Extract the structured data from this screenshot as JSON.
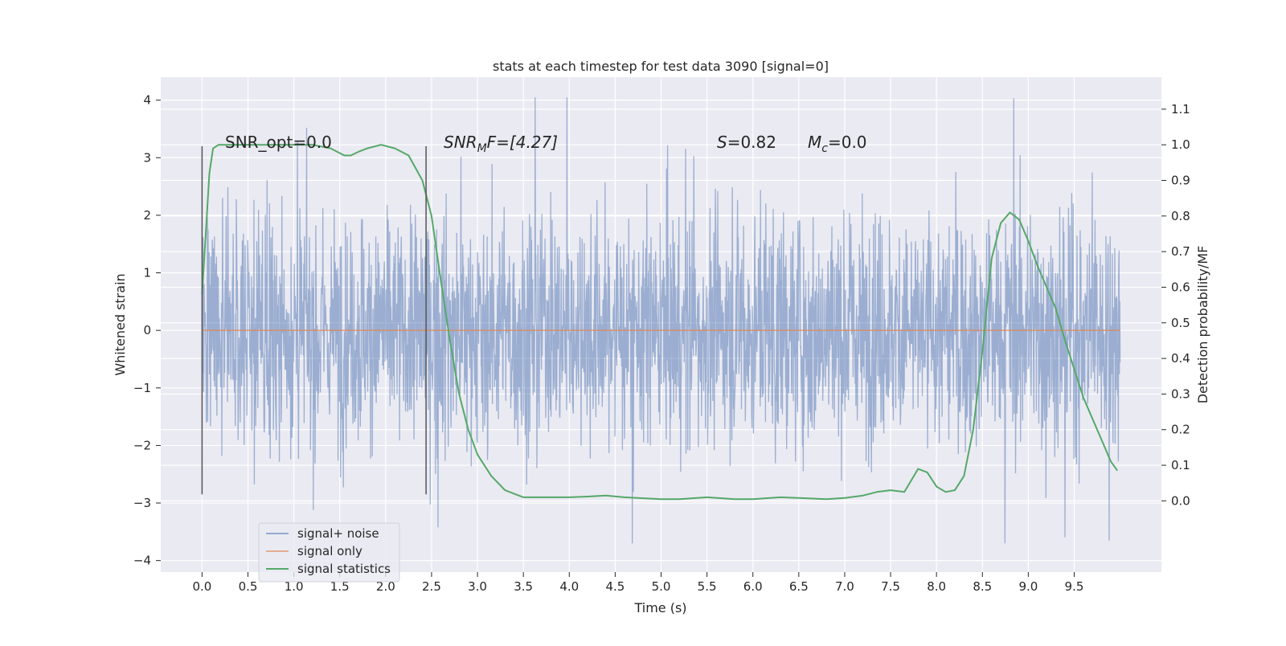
{
  "chart_data": {
    "type": "line",
    "title": "stats at each timestep for test data 3090 [signal=0]",
    "xlabel": "Time (s)",
    "ylabel_left": "Whitened strain",
    "ylabel_right": "Detection probability/MF",
    "xlim": [
      -0.45,
      10.45
    ],
    "ylim_left": [
      -4.2,
      4.4
    ],
    "ylim_right": [
      -0.2,
      1.19
    ],
    "x_ticks": [
      "0.0",
      "0.5",
      "1.0",
      "1.5",
      "2.0",
      "2.5",
      "3.0",
      "3.5",
      "4.0",
      "4.5",
      "5.0",
      "5.5",
      "6.0",
      "6.5",
      "7.0",
      "7.5",
      "8.0",
      "8.5",
      "9.0",
      "9.5"
    ],
    "y_left_ticks": [
      "4",
      "3",
      "2",
      "1",
      "0",
      "−1",
      "−2",
      "−3",
      "−4"
    ],
    "y_right_ticks": [
      "1.1",
      "1.0",
      "0.9",
      "0.8",
      "0.7",
      "0.6",
      "0.5",
      "0.4",
      "0.3",
      "0.2",
      "0.1",
      "0.0"
    ],
    "grid": true,
    "legend_position": "lower-left",
    "annotations": {
      "snr_opt": "SNR_opt=0.0",
      "snr_mf_sym": "SNR",
      "snr_mf_sub": "M",
      "snr_mf_rest": "F=[4.27]",
      "s_sym": "S",
      "s_rest": "=0.82",
      "mc_sym": "M",
      "mc_sub": "c",
      "mc_rest": "=0.0"
    },
    "vertical_lines": [
      {
        "x": 0.0,
        "y_top": 3.2,
        "y_bottom": -2.85
      },
      {
        "x": 2.44,
        "y_top": 3.2,
        "y_bottom": -2.85
      }
    ],
    "series": [
      {
        "name": "signal+ noise",
        "color": "#4c72b0",
        "alpha": 0.5,
        "x_range": [
          0.0,
          10.0
        ],
        "envelope_typical": [
          -1.5,
          1.5
        ],
        "envelope_extreme": [
          -3.7,
          4.05
        ]
      },
      {
        "name": "signal only",
        "color": "#dd8452",
        "constant_y": 0.0,
        "x_range": [
          0.0,
          10.0
        ]
      },
      {
        "name": "signal statistics",
        "color": "#55a868",
        "axis": "right",
        "x": [
          0.0,
          0.04,
          0.08,
          0.12,
          0.18,
          0.3,
          0.5,
          0.8,
          1.0,
          1.2,
          1.4,
          1.55,
          1.62,
          1.7,
          1.8,
          1.95,
          2.1,
          2.25,
          2.4,
          2.5,
          2.6,
          2.7,
          2.8,
          2.9,
          3.0,
          3.15,
          3.3,
          3.5,
          3.7,
          4.0,
          4.2,
          4.4,
          4.6,
          5.0,
          5.2,
          5.5,
          5.8,
          6.0,
          6.3,
          6.5,
          6.8,
          7.0,
          7.2,
          7.35,
          7.5,
          7.65,
          7.8,
          7.9,
          8.0,
          8.1,
          8.2,
          8.3,
          8.4,
          8.5,
          8.6,
          8.7,
          8.8,
          8.9,
          9.0,
          9.1,
          9.2,
          9.3,
          9.4,
          9.5,
          9.6,
          9.7,
          9.8,
          9.9,
          9.97
        ],
        "y": [
          0.58,
          0.75,
          0.92,
          0.99,
          1.0,
          1.0,
          1.0,
          1.0,
          1.0,
          1.0,
          0.99,
          0.97,
          0.97,
          0.98,
          0.99,
          1.0,
          0.99,
          0.97,
          0.9,
          0.8,
          0.62,
          0.45,
          0.3,
          0.2,
          0.13,
          0.07,
          0.03,
          0.01,
          0.01,
          0.01,
          0.012,
          0.015,
          0.01,
          0.005,
          0.005,
          0.01,
          0.005,
          0.005,
          0.01,
          0.008,
          0.005,
          0.008,
          0.015,
          0.025,
          0.03,
          0.025,
          0.09,
          0.08,
          0.04,
          0.025,
          0.03,
          0.07,
          0.2,
          0.42,
          0.68,
          0.78,
          0.81,
          0.79,
          0.73,
          0.66,
          0.6,
          0.54,
          0.45,
          0.37,
          0.29,
          0.23,
          0.17,
          0.11,
          0.085
        ]
      }
    ]
  }
}
